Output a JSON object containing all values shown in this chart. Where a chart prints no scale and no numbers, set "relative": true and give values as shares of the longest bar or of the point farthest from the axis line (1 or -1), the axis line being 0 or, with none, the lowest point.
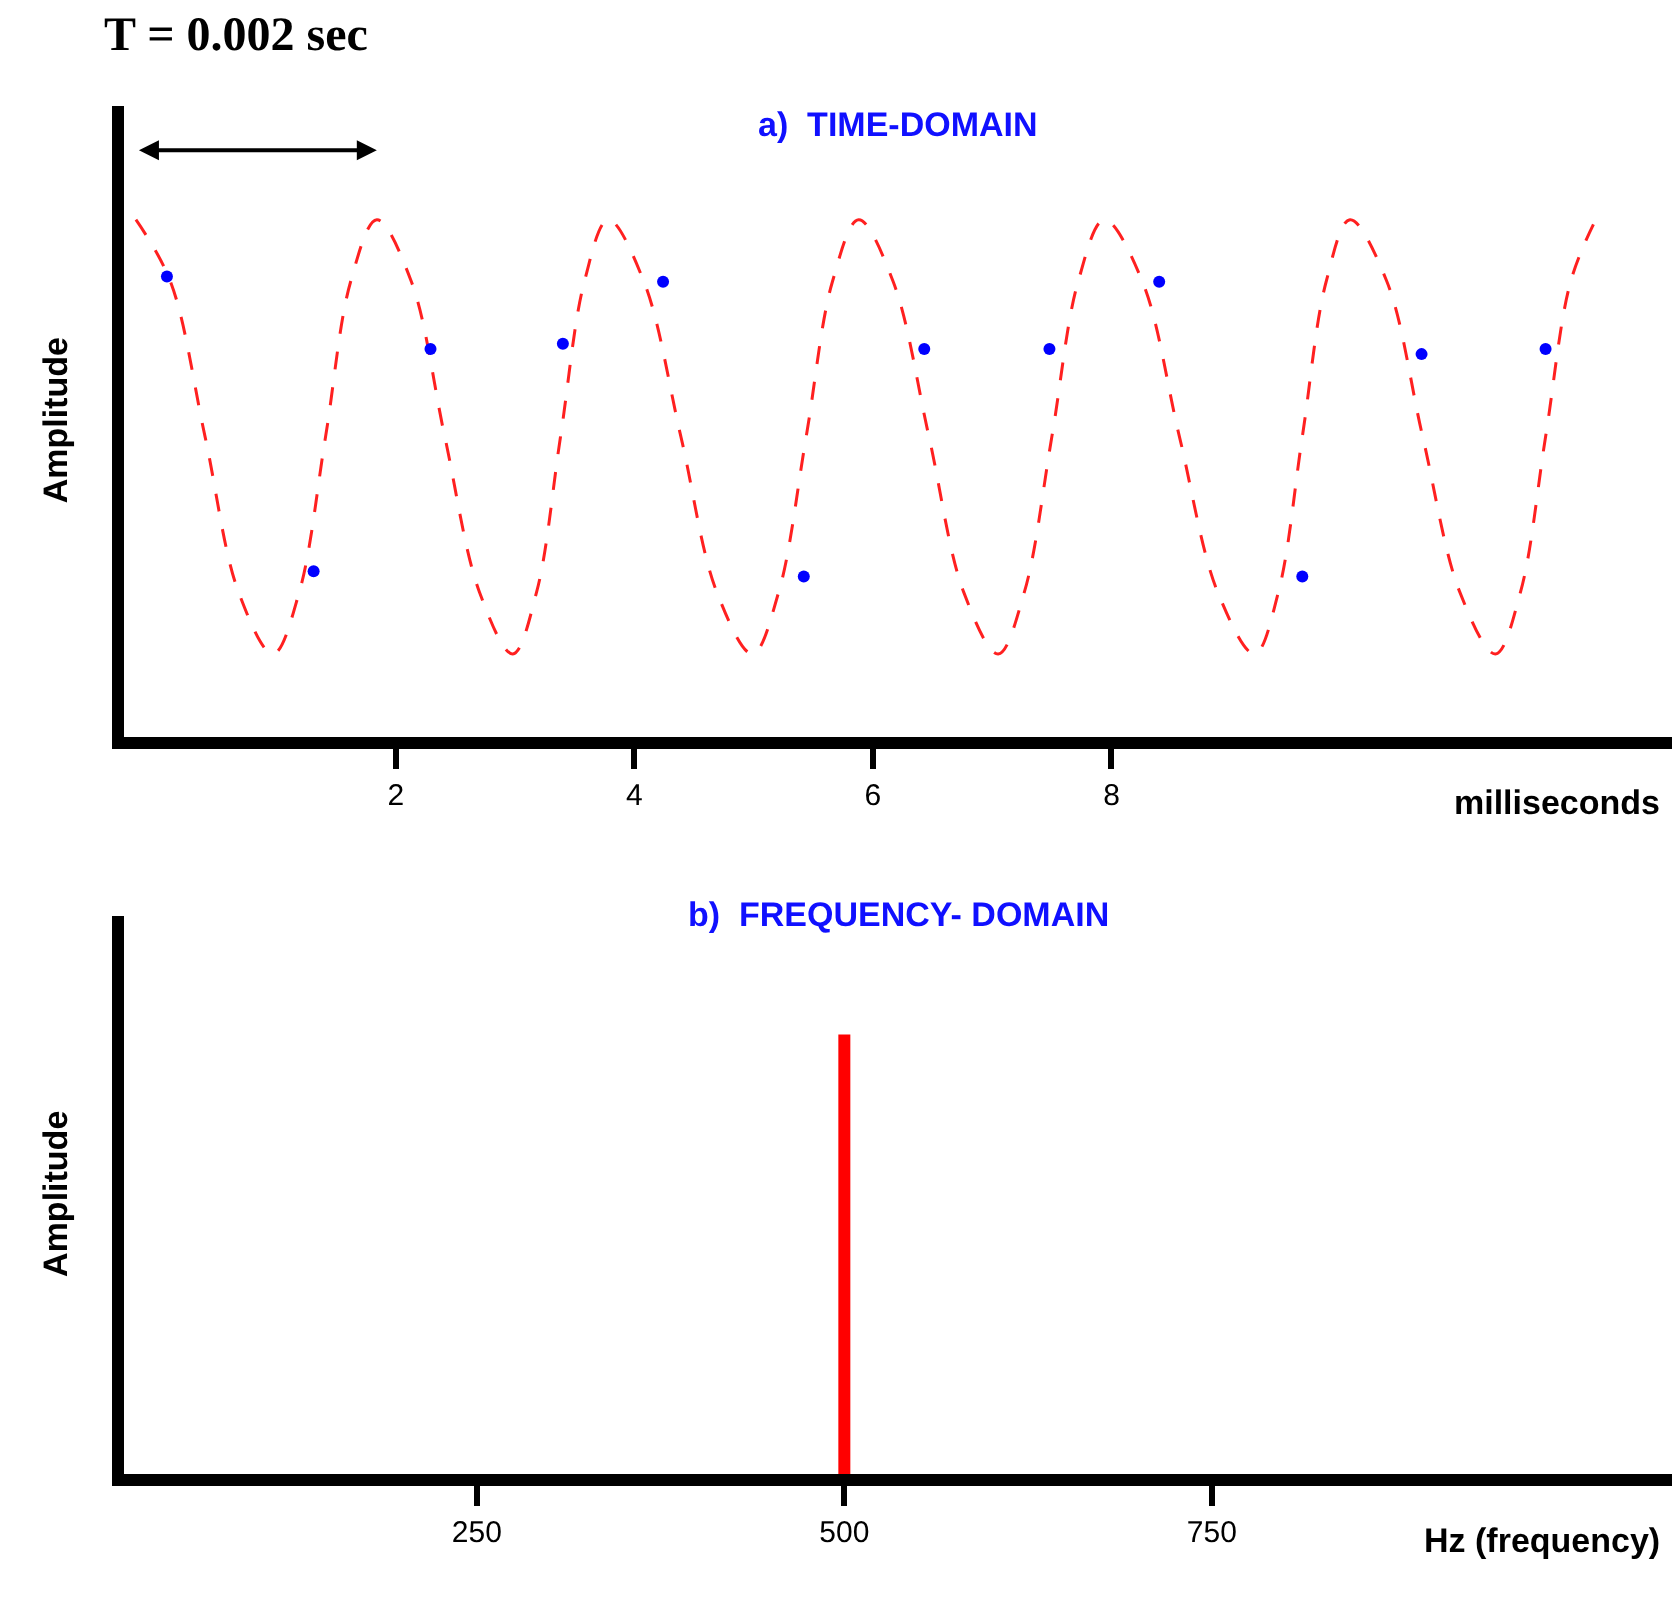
{
  "chart_data": [
    {
      "type": "line",
      "title": "a)  TIME-DOMAIN",
      "ylabel": "Amplitude",
      "xlabel": "milliseconds",
      "relative": true,
      "tick_labels": "x",
      "line_style": "dashed",
      "annotations": [
        "T = 0.002 sec"
      ],
      "xlim": [
        -0.28,
        12.7
      ],
      "xticks": [
        2,
        4,
        6,
        8
      ],
      "series": [
        {
          "type": "line",
          "color": "#ff2020",
          "x": [
            -0.18,
            0.11,
            0.4,
            0.68,
            0.97,
            1.19,
            1.41,
            1.62,
            1.84,
            2.13,
            2.41,
            2.7,
            2.98,
            3.18,
            3.38,
            3.58,
            3.78,
            4.08,
            4.39,
            4.69,
            4.99,
            5.21,
            5.44,
            5.66,
            5.88,
            6.17,
            6.47,
            6.76,
            7.05,
            7.27,
            7.5,
            7.72,
            7.94,
            8.26,
            8.57,
            8.89,
            9.2,
            9.4,
            9.6,
            9.8,
            10.0,
            10.31,
            10.61,
            10.92,
            11.22,
            11.43,
            11.64,
            11.85,
            12.06
          ],
          "values": [
            1,
            0.88,
            0.58,
            0.28,
            0.16,
            0.28,
            0.58,
            0.88,
            1,
            0.88,
            0.58,
            0.28,
            0.16,
            0.28,
            0.58,
            0.88,
            1,
            0.88,
            0.58,
            0.28,
            0.16,
            0.28,
            0.58,
            0.88,
            1,
            0.88,
            0.58,
            0.28,
            0.16,
            0.28,
            0.58,
            0.88,
            1,
            0.88,
            0.58,
            0.28,
            0.16,
            0.28,
            0.58,
            0.88,
            1,
            0.88,
            0.58,
            0.28,
            0.16,
            0.28,
            0.58,
            0.88,
            1
          ]
        },
        {
          "type": "scatter",
          "marker": "circle",
          "color": "#0000ff",
          "x": [
            0.08,
            1.31,
            2.29,
            3.4,
            4.24,
            5.42,
            6.43,
            7.48,
            8.4,
            9.6,
            10.6,
            11.64
          ],
          "values": [
            0.89,
            0.32,
            0.75,
            0.76,
            0.88,
            0.31,
            0.75,
            0.75,
            0.88,
            0.31,
            0.74,
            0.75
          ]
        }
      ]
    },
    {
      "type": "line",
      "title": "b)  FREQUENCY- DOMAIN",
      "ylabel": "Amplitude",
      "xlabel": "Hz (frequency)",
      "relative": true,
      "tick_labels": "x",
      "xlim": [
        10,
        1063
      ],
      "xticks": [
        250,
        500,
        750
      ],
      "x": [
        500,
        500
      ],
      "values": [
        0,
        1
      ],
      "color": "#ff0000"
    }
  ]
}
